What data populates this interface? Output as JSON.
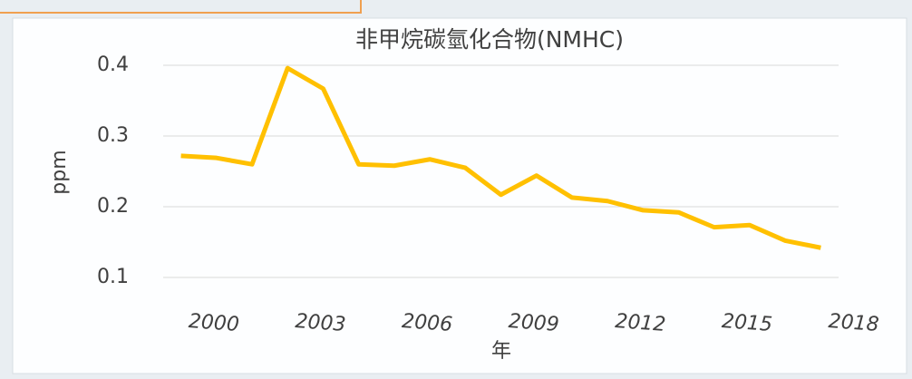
{
  "chart_data": {
    "type": "line",
    "title": "非甲烷碳氫化合物(NMHC)",
    "x_label": "年",
    "y_label": "ppm",
    "x": [
      1999,
      2000,
      2001,
      2002,
      2003,
      2004,
      2005,
      2006,
      2007,
      2008,
      2009,
      2010,
      2011,
      2012,
      2013,
      2014,
      2015,
      2016,
      2017
    ],
    "series": [
      {
        "name": "NMHC",
        "color": "#ffc000",
        "values": [
          0.272,
          0.269,
          0.26,
          0.396,
          0.367,
          0.26,
          0.258,
          0.267,
          0.255,
          0.217,
          0.244,
          0.213,
          0.208,
          0.195,
          0.192,
          0.171,
          0.174,
          0.152,
          0.142
        ]
      }
    ],
    "xlim": [
      1998.5,
      2017.5
    ],
    "xticks": [
      2000,
      2003,
      2006,
      2009,
      2012,
      2015,
      2018
    ],
    "ylim": [
      0.1,
      0.4
    ],
    "yticks": [
      0.1,
      0.2,
      0.3,
      0.4
    ],
    "grid": true
  }
}
